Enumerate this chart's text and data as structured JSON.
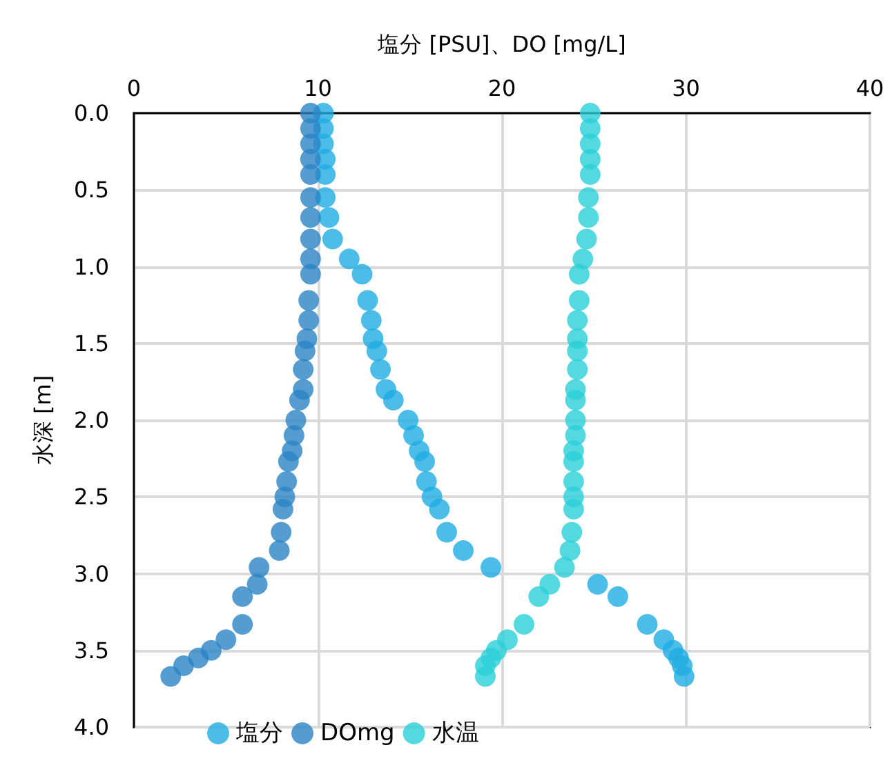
{
  "chart_data": {
    "type": "scatter",
    "xlabel": "塩分 [PSU]、DO [mg/L]",
    "ylabel": "水深 [m]",
    "xlim": [
      0,
      40
    ],
    "xticks": [
      0,
      10,
      20,
      30,
      40
    ],
    "ylim": [
      4.0,
      0.0
    ],
    "yticks": [
      {
        "value": 0,
        "label": "0.0"
      },
      {
        "value": 0.5,
        "label": "0.5"
      },
      {
        "value": 1,
        "label": "1.0"
      },
      {
        "value": 1.5,
        "label": "1.5"
      },
      {
        "value": 2,
        "label": "2.0"
      },
      {
        "value": 2.5,
        "label": "2.5"
      },
      {
        "value": 3,
        "label": "3.0"
      },
      {
        "value": 3.5,
        "label": "3.5"
      },
      {
        "value": 4,
        "label": "4.0"
      }
    ],
    "grid": true,
    "legend": "bottom left",
    "marker": "circle",
    "series": [
      {
        "name": "塩分",
        "color": "#1fade4",
        "x": [
          10.3,
          10.3,
          10.3,
          10.4,
          10.4,
          10.4,
          10.6,
          10.8,
          11.7,
          12.4,
          12.7,
          12.9,
          13.0,
          13.2,
          13.4,
          13.7,
          14.1,
          14.9,
          15.2,
          15.5,
          15.8,
          15.9,
          16.2,
          16.6,
          17.0,
          17.9,
          19.4,
          25.2,
          26.3,
          27.9,
          28.8,
          29.3,
          29.6,
          29.8,
          29.9
        ],
        "values": [
          0.0,
          0.1,
          0.2,
          0.3,
          0.4,
          0.55,
          0.68,
          0.82,
          0.95,
          1.05,
          1.22,
          1.35,
          1.47,
          1.55,
          1.67,
          1.8,
          1.87,
          2.0,
          2.1,
          2.2,
          2.27,
          2.4,
          2.5,
          2.58,
          2.73,
          2.85,
          2.96,
          3.07,
          3.15,
          3.33,
          3.43,
          3.5,
          3.55,
          3.6,
          3.67
        ]
      },
      {
        "name": "DOmg",
        "color": "#2a83c6",
        "x": [
          9.6,
          9.6,
          9.6,
          9.6,
          9.6,
          9.6,
          9.6,
          9.6,
          9.6,
          9.6,
          9.5,
          9.5,
          9.4,
          9.3,
          9.2,
          9.2,
          9.0,
          8.8,
          8.7,
          8.6,
          8.4,
          8.3,
          8.2,
          8.1,
          8.0,
          7.9,
          6.8,
          6.7,
          5.9,
          5.9,
          5.0,
          4.2,
          3.5,
          2.7,
          2.0
        ],
        "values": [
          0.0,
          0.1,
          0.2,
          0.3,
          0.4,
          0.55,
          0.68,
          0.82,
          0.95,
          1.05,
          1.22,
          1.35,
          1.47,
          1.55,
          1.67,
          1.8,
          1.87,
          2.0,
          2.1,
          2.2,
          2.27,
          2.4,
          2.5,
          2.58,
          2.73,
          2.85,
          2.96,
          3.07,
          3.15,
          3.33,
          3.43,
          3.5,
          3.55,
          3.6,
          3.67
        ]
      },
      {
        "name": "水温",
        "color": "#2acfd8",
        "x": [
          24.8,
          24.8,
          24.8,
          24.8,
          24.8,
          24.7,
          24.7,
          24.6,
          24.4,
          24.2,
          24.2,
          24.1,
          24.1,
          24.1,
          24.1,
          24.0,
          24.0,
          24.0,
          24.0,
          23.9,
          23.9,
          23.9,
          23.9,
          23.9,
          23.8,
          23.7,
          23.4,
          22.6,
          22.0,
          21.2,
          20.3,
          19.7,
          19.4,
          19.1,
          19.1
        ],
        "values": [
          0.0,
          0.1,
          0.2,
          0.3,
          0.4,
          0.55,
          0.68,
          0.82,
          0.95,
          1.05,
          1.22,
          1.35,
          1.47,
          1.55,
          1.67,
          1.8,
          1.87,
          2.0,
          2.1,
          2.2,
          2.27,
          2.4,
          2.5,
          2.58,
          2.73,
          2.85,
          2.96,
          3.07,
          3.15,
          3.33,
          3.43,
          3.5,
          3.55,
          3.6,
          3.67
        ]
      }
    ]
  }
}
